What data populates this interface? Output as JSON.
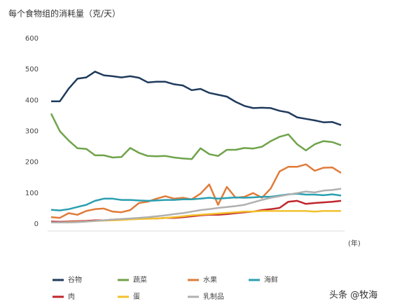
{
  "chart_data": {
    "type": "line",
    "title": "每个食物组的消耗量（克/天）",
    "x_label": "(年)",
    "annotation": "头条 @牧海",
    "categories": [
      null,
      null,
      null,
      null,
      null,
      null,
      null,
      null,
      null,
      null,
      null,
      null,
      null,
      null,
      null,
      null,
      null,
      null,
      null,
      null,
      null,
      null,
      null,
      null,
      null,
      null,
      null,
      null,
      null,
      null,
      null,
      null,
      null,
      null
    ],
    "ylim": [
      0,
      600
    ],
    "yticks": [
      0,
      100,
      200,
      300,
      400,
      500,
      600
    ],
    "series": [
      {
        "name": "谷物",
        "color": "#1f3b5c",
        "values": [
          397,
          397,
          438,
          470,
          474,
          493,
          481,
          478,
          474,
          478,
          473,
          458,
          460,
          460,
          452,
          448,
          433,
          437,
          424,
          418,
          412,
          395,
          382,
          375,
          376,
          375,
          366,
          361,
          345,
          340,
          335,
          329,
          330,
          320
        ]
      },
      {
        "name": "蔬菜",
        "color": "#6fa34a",
        "values": [
          357,
          300,
          270,
          245,
          243,
          222,
          222,
          215,
          217,
          246,
          230,
          220,
          219,
          220,
          215,
          212,
          210,
          245,
          226,
          220,
          240,
          240,
          246,
          244,
          250,
          268,
          282,
          290,
          258,
          238,
          258,
          268,
          265,
          255
        ]
      },
      {
        "name": "水果",
        "color": "#e07b39",
        "values": [
          22,
          20,
          35,
          30,
          42,
          48,
          50,
          40,
          38,
          45,
          68,
          72,
          82,
          90,
          82,
          85,
          80,
          98,
          128,
          62,
          120,
          85,
          88,
          100,
          85,
          115,
          170,
          185,
          185,
          193,
          172,
          182,
          183,
          165
        ]
      },
      {
        "name": "海鲜",
        "color": "#2a9fb0",
        "values": [
          46,
          44,
          48,
          55,
          62,
          75,
          82,
          82,
          78,
          78,
          76,
          75,
          76,
          78,
          78,
          80,
          80,
          82,
          85,
          82,
          84,
          86,
          85,
          86,
          88,
          88,
          92,
          96,
          98,
          95,
          95,
          93,
          96,
          92
        ]
      },
      {
        "name": "肉",
        "color": "#c0262d",
        "values": [
          8,
          7,
          8,
          9,
          10,
          12,
          12,
          14,
          15,
          16,
          17,
          18,
          18,
          20,
          20,
          22,
          25,
          28,
          30,
          30,
          32,
          35,
          38,
          40,
          45,
          48,
          52,
          72,
          75,
          65,
          68,
          70,
          72,
          75
        ]
      },
      {
        "name": "蛋",
        "color": "#f2c12e",
        "values": [
          5,
          5,
          6,
          7,
          8,
          10,
          11,
          12,
          13,
          15,
          16,
          17,
          18,
          20,
          22,
          25,
          28,
          30,
          32,
          34,
          36,
          38,
          40,
          40,
          42,
          42,
          42,
          42,
          42,
          42,
          40,
          42,
          42,
          42
        ]
      },
      {
        "name": "乳制品",
        "color": "#b0b0b0",
        "values": [
          5,
          5,
          5,
          6,
          8,
          10,
          12,
          14,
          16,
          18,
          20,
          22,
          25,
          28,
          32,
          35,
          40,
          45,
          48,
          52,
          55,
          58,
          62,
          70,
          78,
          85,
          90,
          95,
          100,
          105,
          102,
          108,
          110,
          114
        ]
      }
    ]
  }
}
